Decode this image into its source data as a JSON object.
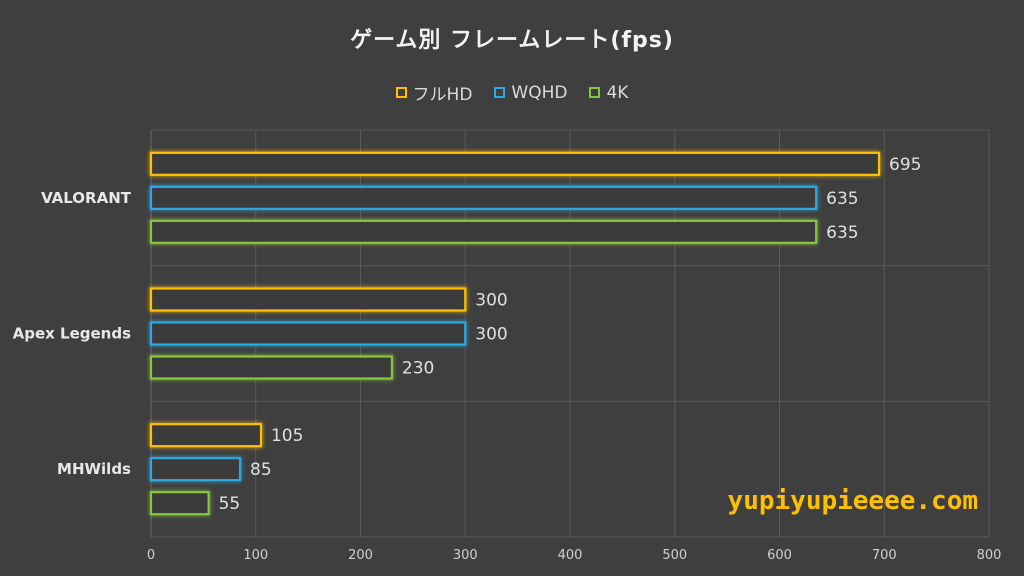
{
  "chart_data": {
    "type": "bar",
    "orientation": "horizontal",
    "title": "ゲーム別 フレームレート(fps)",
    "categories": [
      "VALORANT",
      "Apex Legends",
      "MHWilds"
    ],
    "series": [
      {
        "name": "フルHD",
        "color": "#ffc000",
        "values": [
          695,
          300,
          105
        ]
      },
      {
        "name": "WQHD",
        "color": "#2ea8e0",
        "values": [
          635,
          300,
          85
        ]
      },
      {
        "name": "4K",
        "color": "#8ac53f",
        "values": [
          635,
          230,
          55
        ]
      }
    ],
    "xlim": [
      0,
      800
    ],
    "xticks": [
      "0",
      "100",
      "200",
      "300",
      "400",
      "500",
      "600",
      "700",
      "800"
    ],
    "xlabel": "",
    "ylabel": "",
    "grid": true,
    "legend_position": "top"
  },
  "watermark": "yupiyupieeee.com"
}
